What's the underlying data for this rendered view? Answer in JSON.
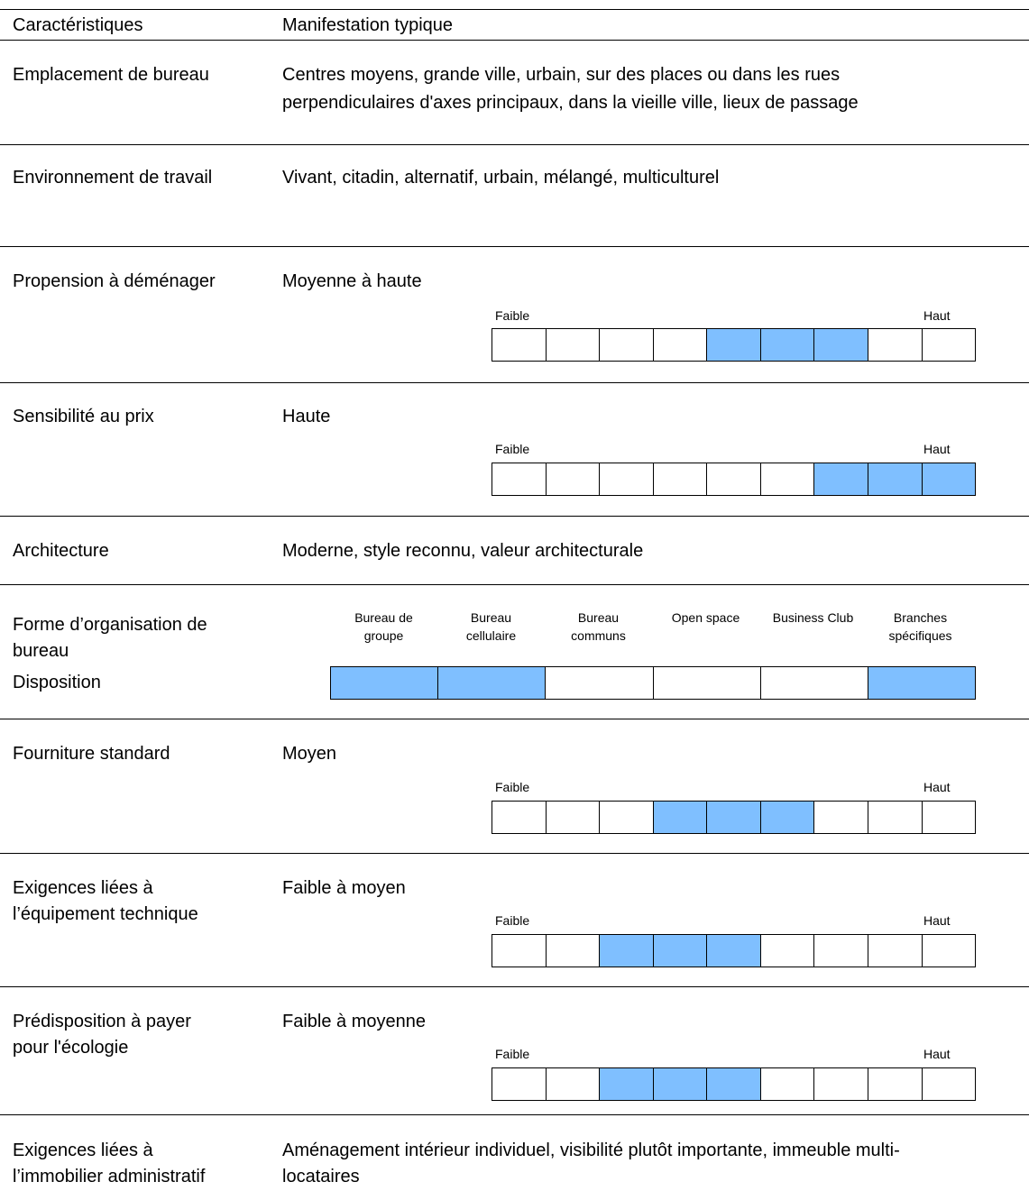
{
  "header": {
    "col1": "Caractéristiques",
    "col2": "Manifestation typique"
  },
  "scale_labels": {
    "low": "Faible",
    "high": "Haut"
  },
  "colors": {
    "filled": "#7fbfff",
    "empty": "#ffffff",
    "border": "#000000"
  },
  "rows": {
    "emplacement": {
      "label": "Emplacement de bureau",
      "value_line1": "Centres moyens, grande ville, urbain, sur des places ou dans les rues",
      "value_line2": "perpendiculaires d'axes principaux, dans la vieille ville, lieux de passage"
    },
    "environnement": {
      "label": "Environnement de travail",
      "value": "Vivant, citadin, alternatif, urbain, mélangé, multiculturel"
    },
    "propension": {
      "label": "Propension à déménager",
      "value": "Moyenne à haute",
      "scale": [
        false,
        false,
        false,
        false,
        true,
        true,
        true,
        false,
        false
      ]
    },
    "sensibilite": {
      "label": "Sensibilité au prix",
      "value": "Haute",
      "scale": [
        false,
        false,
        false,
        false,
        false,
        false,
        true,
        true,
        true
      ]
    },
    "architecture": {
      "label": "Architecture",
      "value": "Moderne, style reconnu, valeur architecturale"
    },
    "organisation": {
      "label_line1": "Forme d’organisation de",
      "label_line2": "bureau",
      "label_line3": "Disposition",
      "options": [
        {
          "line1": "Bureau de",
          "line2": "groupe",
          "selected": true
        },
        {
          "line1": "Bureau",
          "line2": "cellulaire",
          "selected": true
        },
        {
          "line1": "Bureau",
          "line2": "communs",
          "selected": false
        },
        {
          "line1": "Open space",
          "line2": "",
          "selected": false
        },
        {
          "line1": "Business Club",
          "line2": "",
          "selected": false
        },
        {
          "line1": "Branches",
          "line2": "spécifiques",
          "selected": true
        }
      ]
    },
    "fourniture": {
      "label": "Fourniture standard",
      "value": "Moyen",
      "scale": [
        false,
        false,
        false,
        true,
        true,
        true,
        false,
        false,
        false
      ]
    },
    "equipement": {
      "label_line1": "Exigences liées à",
      "label_line2": "l’équipement technique",
      "value": "Faible à moyen",
      "scale": [
        false,
        false,
        true,
        true,
        true,
        false,
        false,
        false,
        false
      ]
    },
    "ecologie": {
      "label_line1": "Prédisposition à payer",
      "label_line2": "pour l'écologie",
      "value": "Faible à moyenne",
      "scale": [
        false,
        false,
        true,
        true,
        true,
        false,
        false,
        false,
        false
      ]
    },
    "immobilier": {
      "label_line1": "Exigences liées à",
      "label_line2": "l’immobilier administratif",
      "value_line1": "Aménagement intérieur individuel, visibilité plutôt importante, immeuble multi-",
      "value_line2": "locataires"
    }
  }
}
